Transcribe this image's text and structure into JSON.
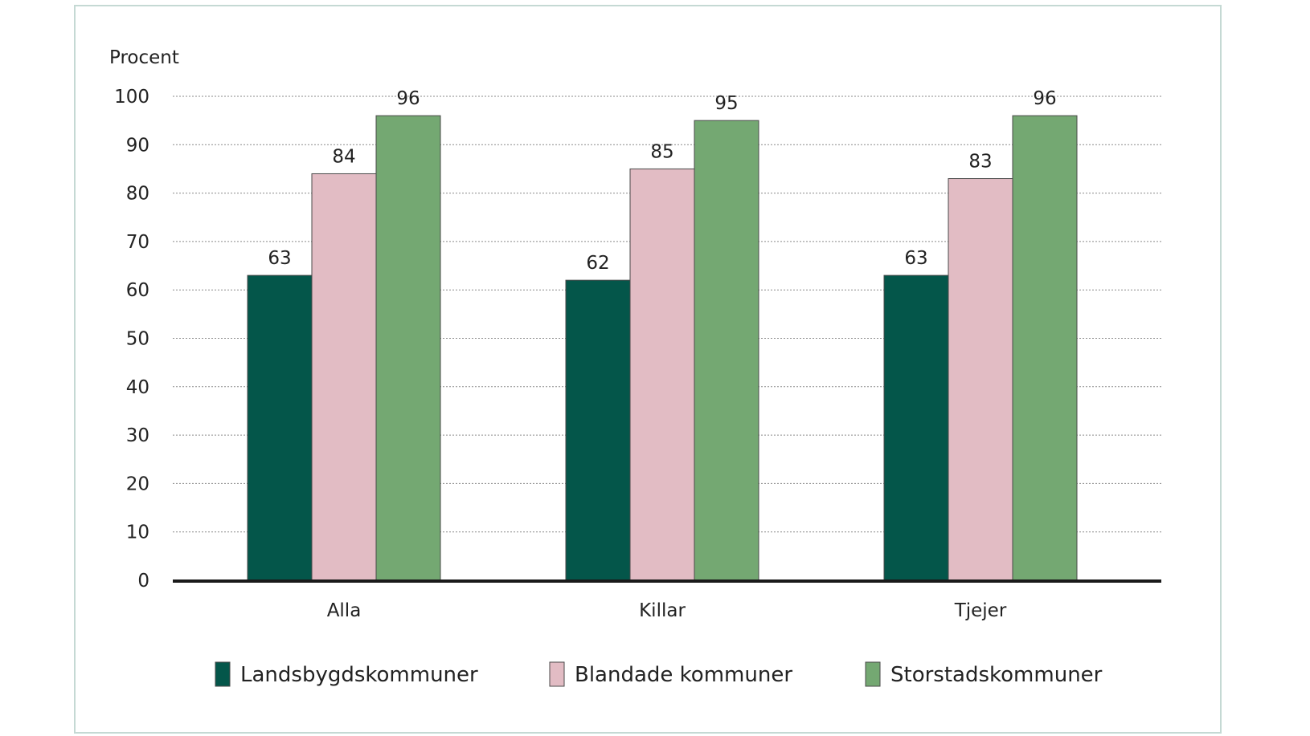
{
  "chart_data": {
    "type": "bar",
    "ylabel": "Procent",
    "ylim": [
      0,
      100
    ],
    "yticks": [
      0,
      10,
      20,
      30,
      40,
      50,
      60,
      70,
      80,
      90,
      100
    ],
    "categories": [
      "Alla",
      "Killar",
      "Tjejer"
    ],
    "series": [
      {
        "name": "Landsbygdskommuner",
        "color": "#04564a",
        "values": [
          63,
          62,
          63
        ]
      },
      {
        "name": "Blandade kommuner",
        "color": "#e2bcc4",
        "values": [
          84,
          85,
          83
        ]
      },
      {
        "name": "Storstadskommuner",
        "color": "#74a872",
        "values": [
          96,
          95,
          96
        ]
      }
    ],
    "grid": true,
    "legend": "bottom"
  }
}
